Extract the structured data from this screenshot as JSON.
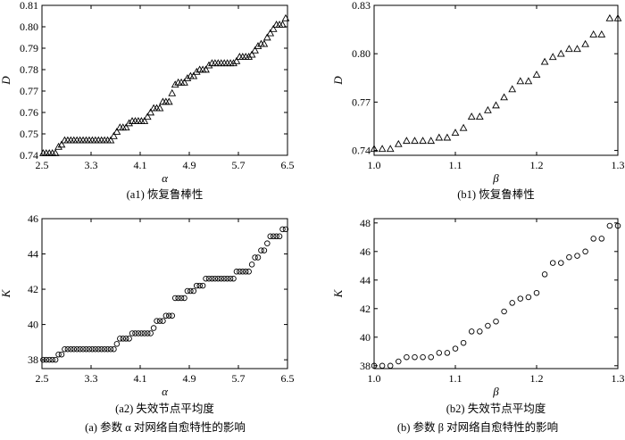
{
  "chart_data": [
    {
      "type": "scatter",
      "panel": "a1",
      "marker": "triangle",
      "caption": "(a1) 恢复鲁棒性",
      "xlabel": "α",
      "ylabel": "D",
      "xlim": [
        2.5,
        6.5
      ],
      "ylim": [
        0.74,
        0.81
      ],
      "xticks": [
        "2.5",
        "3.3",
        "4.1",
        "4.9",
        "5.7",
        "6.5"
      ],
      "yticks": [
        "0.74",
        "0.75",
        "0.76",
        "0.77",
        "0.78",
        "0.79",
        "0.80",
        "0.81"
      ],
      "x": [
        2.52,
        2.57,
        2.62,
        2.67,
        2.72,
        2.77,
        2.82,
        2.87,
        2.92,
        2.97,
        3.02,
        3.07,
        3.12,
        3.17,
        3.22,
        3.27,
        3.32,
        3.37,
        3.42,
        3.47,
        3.52,
        3.57,
        3.62,
        3.67,
        3.72,
        3.77,
        3.82,
        3.87,
        3.92,
        3.97,
        4.02,
        4.07,
        4.12,
        4.17,
        4.22,
        4.27,
        4.32,
        4.37,
        4.42,
        4.47,
        4.52,
        4.57,
        4.62,
        4.67,
        4.72,
        4.77,
        4.82,
        4.87,
        4.92,
        4.97,
        5.02,
        5.07,
        5.12,
        5.17,
        5.22,
        5.27,
        5.32,
        5.37,
        5.42,
        5.47,
        5.52,
        5.57,
        5.62,
        5.67,
        5.72,
        5.77,
        5.82,
        5.87,
        5.92,
        5.97,
        6.02,
        6.07,
        6.12,
        6.17,
        6.22,
        6.27,
        6.32,
        6.37,
        6.42,
        6.47
      ],
      "y": [
        0.741,
        0.741,
        0.741,
        0.741,
        0.741,
        0.744,
        0.745,
        0.747,
        0.747,
        0.747,
        0.747,
        0.747,
        0.747,
        0.747,
        0.747,
        0.747,
        0.747,
        0.747,
        0.747,
        0.747,
        0.747,
        0.747,
        0.747,
        0.749,
        0.751,
        0.753,
        0.753,
        0.753,
        0.755,
        0.756,
        0.756,
        0.756,
        0.756,
        0.756,
        0.758,
        0.76,
        0.762,
        0.762,
        0.762,
        0.765,
        0.765,
        0.765,
        0.769,
        0.773,
        0.774,
        0.774,
        0.774,
        0.776,
        0.777,
        0.777,
        0.779,
        0.78,
        0.78,
        0.78,
        0.782,
        0.783,
        0.783,
        0.783,
        0.783,
        0.783,
        0.783,
        0.783,
        0.783,
        0.784,
        0.786,
        0.786,
        0.786,
        0.786,
        0.787,
        0.789,
        0.791,
        0.792,
        0.792,
        0.795,
        0.797,
        0.799,
        0.801,
        0.801,
        0.801,
        0.804
      ]
    },
    {
      "type": "scatter",
      "panel": "b1",
      "marker": "triangle",
      "caption": "(b1) 恢复鲁棒性",
      "xlabel": "β",
      "ylabel": "D",
      "xlim": [
        1.0,
        1.3
      ],
      "ylim": [
        0.737,
        0.83
      ],
      "xticks": [
        "1.0",
        "1.1",
        "1.2",
        "1.3"
      ],
      "yticks": [
        "0.74",
        "0.77",
        "0.80",
        "0.83"
      ],
      "x": [
        1.0,
        1.01,
        1.02,
        1.03,
        1.04,
        1.05,
        1.06,
        1.07,
        1.08,
        1.09,
        1.1,
        1.11,
        1.12,
        1.13,
        1.14,
        1.15,
        1.16,
        1.17,
        1.18,
        1.19,
        1.2,
        1.21,
        1.22,
        1.23,
        1.24,
        1.25,
        1.26,
        1.27,
        1.28,
        1.29,
        1.3
      ],
      "y": [
        0.741,
        0.741,
        0.741,
        0.744,
        0.746,
        0.746,
        0.746,
        0.746,
        0.748,
        0.748,
        0.751,
        0.754,
        0.761,
        0.761,
        0.765,
        0.768,
        0.773,
        0.778,
        0.783,
        0.783,
        0.787,
        0.795,
        0.798,
        0.8,
        0.803,
        0.803,
        0.806,
        0.812,
        0.812,
        0.822,
        0.822
      ]
    },
    {
      "type": "scatter",
      "panel": "a2",
      "marker": "circle",
      "caption": "(a2) 失效节点平均度",
      "xlabel": "α",
      "ylabel": "K",
      "xlim": [
        2.5,
        6.5
      ],
      "ylim": [
        37.5,
        46
      ],
      "xticks": [
        "2.5",
        "3.3",
        "4.1",
        "4.9",
        "5.7",
        "6.5"
      ],
      "yticks": [
        "38",
        "40",
        "42",
        "44",
        "46"
      ],
      "x": [
        2.52,
        2.57,
        2.62,
        2.67,
        2.72,
        2.77,
        2.82,
        2.87,
        2.92,
        2.97,
        3.02,
        3.07,
        3.12,
        3.17,
        3.22,
        3.27,
        3.32,
        3.37,
        3.42,
        3.47,
        3.52,
        3.57,
        3.62,
        3.67,
        3.72,
        3.77,
        3.82,
        3.87,
        3.92,
        3.97,
        4.02,
        4.07,
        4.12,
        4.17,
        4.22,
        4.27,
        4.32,
        4.37,
        4.42,
        4.47,
        4.52,
        4.57,
        4.62,
        4.67,
        4.72,
        4.77,
        4.82,
        4.87,
        4.92,
        4.97,
        5.02,
        5.07,
        5.12,
        5.17,
        5.22,
        5.27,
        5.32,
        5.37,
        5.42,
        5.47,
        5.52,
        5.57,
        5.62,
        5.67,
        5.72,
        5.77,
        5.82,
        5.87,
        5.92,
        5.97,
        6.02,
        6.07,
        6.12,
        6.17,
        6.22,
        6.27,
        6.32,
        6.37,
        6.42,
        6.47
      ],
      "y": [
        38.0,
        38.0,
        38.0,
        38.0,
        38.0,
        38.3,
        38.3,
        38.6,
        38.6,
        38.6,
        38.6,
        38.6,
        38.6,
        38.6,
        38.6,
        38.6,
        38.6,
        38.6,
        38.6,
        38.6,
        38.6,
        38.6,
        38.6,
        38.6,
        38.9,
        39.2,
        39.2,
        39.2,
        39.2,
        39.5,
        39.5,
        39.5,
        39.5,
        39.5,
        39.5,
        39.5,
        39.8,
        40.2,
        40.2,
        40.2,
        40.5,
        40.5,
        40.5,
        41.5,
        41.5,
        41.5,
        41.5,
        41.9,
        41.9,
        41.9,
        42.2,
        42.2,
        42.2,
        42.6,
        42.6,
        42.6,
        42.6,
        42.6,
        42.6,
        42.6,
        42.6,
        42.6,
        42.6,
        43.0,
        43.0,
        43.0,
        43.0,
        43.0,
        43.4,
        43.8,
        43.8,
        44.2,
        44.2,
        44.6,
        45.0,
        45.0,
        45.0,
        45.0,
        45.4,
        45.4
      ]
    },
    {
      "type": "scatter",
      "panel": "b2",
      "marker": "circle",
      "caption": "(b2) 失效节点平均度",
      "xlabel": "β",
      "ylabel": "K",
      "xlim": [
        1.0,
        1.3
      ],
      "ylim": [
        37.8,
        48.3
      ],
      "xticks": [
        "1.0",
        "1.1",
        "1.2",
        "1.3"
      ],
      "yticks": [
        "38",
        "40",
        "42",
        "44",
        "46",
        "48"
      ],
      "x": [
        1.0,
        1.01,
        1.02,
        1.03,
        1.04,
        1.05,
        1.06,
        1.07,
        1.08,
        1.09,
        1.1,
        1.11,
        1.12,
        1.13,
        1.14,
        1.15,
        1.16,
        1.17,
        1.18,
        1.19,
        1.2,
        1.21,
        1.22,
        1.23,
        1.24,
        1.25,
        1.26,
        1.27,
        1.28,
        1.29,
        1.3
      ],
      "y": [
        38.0,
        38.0,
        38.0,
        38.3,
        38.6,
        38.6,
        38.6,
        38.6,
        38.9,
        38.9,
        39.2,
        39.6,
        40.4,
        40.4,
        40.8,
        41.1,
        41.8,
        42.4,
        42.7,
        42.8,
        43.1,
        44.4,
        45.2,
        45.2,
        45.6,
        45.7,
        46.0,
        46.9,
        46.9,
        47.8,
        47.8
      ]
    }
  ],
  "group_captions": {
    "left": "(a) 参数 α 对网络自愈特性的影响",
    "right": "(b) 参数 β 对网络自愈特性的影响"
  }
}
